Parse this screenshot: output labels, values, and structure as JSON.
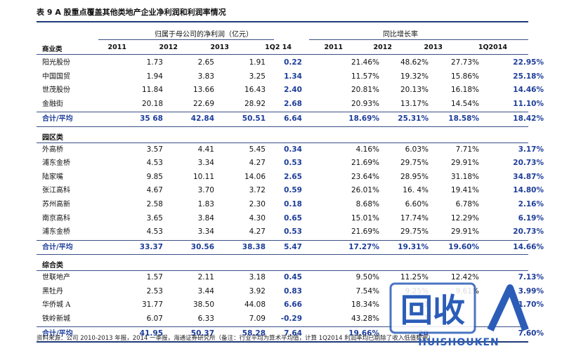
{
  "title": "表 9 A 股重点覆盖其他类地产企业净利润和利润率情况",
  "group_headers": {
    "profit": "归属于母公司的净利润（亿元）",
    "growth": "同比增长率"
  },
  "columns": [
    "商业类",
    "2011",
    "2012",
    "2013",
    "1Q2  14",
    "2011",
    "2012",
    "2013",
    "1Q2014"
  ],
  "sections": [
    {
      "label": "",
      "rows": [
        {
          "name": "阳光股份",
          "v": [
            "1.73",
            "2.65",
            "1.91",
            "0.22",
            "21.46%",
            "48.62%",
            "27.73%",
            "22.95%"
          ]
        },
        {
          "name": "中国国贸",
          "v": [
            "1.94",
            "3.83",
            "3.25",
            "1.34",
            "11.57%",
            "19.32%",
            "15.86%",
            "25.18%"
          ]
        },
        {
          "name": "世茂股份",
          "v": [
            "11.84",
            "13.66",
            "16.43",
            "2.40",
            "20.81%",
            "20.13%",
            "16.18%",
            "14.46%"
          ]
        },
        {
          "name": "金融街",
          "v": [
            "20.18",
            "22.69",
            "28.92",
            "2.68",
            "20.93%",
            "13.17%",
            "14.54%",
            "11.10%"
          ]
        }
      ],
      "total": {
        "name": "合计/平均",
        "v": [
          "35  68",
          "42.84",
          "50.51",
          "6.64",
          "18.69%",
          "25.31%",
          "18.58%",
          "18.42%"
        ]
      }
    },
    {
      "label": "园区类",
      "rows": [
        {
          "name": "外高桥",
          "v": [
            "3.57",
            "4.41",
            "5.45",
            "0.34",
            "4.16%",
            "6.03%",
            "7.71%",
            "3.17%"
          ]
        },
        {
          "name": "浦东金桥",
          "v": [
            "4.53",
            "3.34",
            "4.27",
            "0.53",
            "21.69%",
            "29.75%",
            "29.91%",
            "20.73%"
          ]
        },
        {
          "name": "陆家嘴",
          "v": [
            "9.85",
            "10.11",
            "14.06",
            "2.65",
            "23.64%",
            "28.95%",
            "31.18%",
            "34.87%"
          ]
        },
        {
          "name": "张江高科",
          "v": [
            "4.67",
            "3.70",
            "3.72",
            "0.59",
            "26.01%",
            "16.  4%",
            "19.41%",
            "14.80%"
          ]
        },
        {
          "name": "苏州高新",
          "v": [
            "2.58",
            "1.83",
            "2.30",
            "0.18",
            "8.68%",
            "6.60%",
            "6.78%",
            "2.16%"
          ]
        },
        {
          "name": "南京高科",
          "v": [
            "3.65",
            "3.84",
            "4.30",
            "0.65",
            "15.01%",
            "17.74%",
            "12.29%",
            "6.19%"
          ]
        },
        {
          "name": "浦东金桥",
          "v": [
            "4.53",
            "3.34",
            "4.27",
            "0.53",
            "21.69%",
            "29.75%",
            "29.91%",
            "20.73%"
          ]
        }
      ],
      "total": {
        "name": "合计/平均",
        "v": [
          "33.37",
          "30.56",
          "38.38",
          "5.47",
          "17.27%",
          "19.31%",
          "19.60%",
          "14.66%"
        ]
      }
    },
    {
      "label": "综合类",
      "rows": [
        {
          "name": "世联地产",
          "v": [
            "1.57",
            "2.11",
            "3.18",
            "0.45",
            "9.50%",
            "11.25%",
            "12.42%",
            "7.13%"
          ]
        },
        {
          "name": "黑牡丹",
          "v": [
            "2.53",
            "3.44",
            "3.92",
            "0.83",
            "7.54%",
            "9.25%",
            "9.61%",
            "3.99%"
          ]
        },
        {
          "name": "华侨城 A",
          "v": [
            "31.77",
            "38.50",
            "44.08",
            "6.66",
            "18.34%",
            "1",
            "",
            "11.70%"
          ]
        },
        {
          "name": "铁岭新城",
          "v": [
            "6.07",
            "6.33",
            "7.09",
            "-0.29",
            "43.28%",
            "1",
            "",
            ""
          ]
        }
      ],
      "total": {
        "name": "合计/平均",
        "v": [
          "41.95",
          "50.37",
          "58.28",
          "7.64",
          "19.66%",
          "20",
          "",
          "7.60%"
        ]
      }
    }
  ],
  "footer": "资料来源：公司 2010-2013 年报，2014 一季报，海通证券研究所（备注：行业平均为算术平均值，计算 1Q2014 利润率均已剔除了收入低值数据）",
  "watermark": {
    "main": "回收",
    "sub": "HUISHOUKEN"
  },
  "colors": {
    "accent": "#1d3d9a",
    "rule": "#1f3a78"
  }
}
